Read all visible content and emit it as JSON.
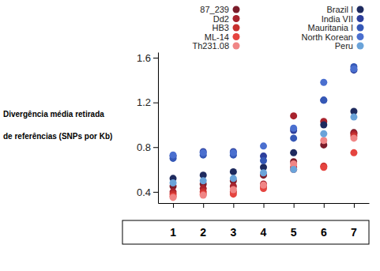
{
  "chart_data": {
    "type": "scatter",
    "y_label": [
      "Divergência média retirada",
      "de referências (SNPs por Kb)"
    ],
    "categories": [
      "1",
      "2",
      "3",
      "4",
      "5",
      "6",
      "7"
    ],
    "series": [
      {
        "name": "87_239",
        "color": "#7b1c2a",
        "values": [
          0.45,
          0.47,
          0.5,
          0.55,
          0.67,
          0.82,
          0.93
        ]
      },
      {
        "name": "Dd2",
        "color": "#a8232d",
        "values": [
          0.4,
          0.43,
          0.45,
          0.47,
          1.08,
          1.03,
          0.92
        ]
      },
      {
        "name": "HB3",
        "color": "#c8302e",
        "values": [
          0.38,
          0.4,
          0.4,
          0.45,
          0.62,
          0.63,
          0.9
        ]
      },
      {
        "name": "ML-14",
        "color": "#e5443f",
        "values": [
          0.36,
          0.38,
          0.38,
          0.43,
          0.6,
          0.62,
          0.75
        ]
      },
      {
        "name": "Th231.08",
        "color": "#f08585",
        "values": [
          0.35,
          0.37,
          0.42,
          0.46,
          0.65,
          0.86,
          0.88
        ]
      },
      {
        "name": "Brazil I",
        "color": "#1e2a5e",
        "values": [
          0.52,
          0.55,
          0.58,
          0.62,
          0.75,
          1.0,
          1.12
        ]
      },
      {
        "name": "India VII",
        "color": "#2d3f9c",
        "values": [
          0.72,
          0.76,
          0.76,
          0.72,
          0.95,
          1.22,
          1.49
        ]
      },
      {
        "name": "Mauritania I",
        "color": "#3558b6",
        "values": [
          0.7,
          0.73,
          0.73,
          0.68,
          0.88,
          1.22,
          1.52
        ]
      },
      {
        "name": "North Korean",
        "color": "#4a6fcf",
        "values": [
          0.73,
          0.75,
          0.75,
          0.81,
          0.97,
          1.38,
          1.5
        ]
      },
      {
        "name": "Peru",
        "color": "#6aa3d9",
        "values": [
          0.48,
          0.5,
          0.52,
          0.57,
          0.6,
          0.92,
          1.07
        ]
      }
    ],
    "ylim": [
      0.3,
      1.65
    ],
    "yticks": [
      0.4,
      0.8,
      1.2,
      1.6
    ],
    "legend": "top",
    "marker": "circle"
  }
}
